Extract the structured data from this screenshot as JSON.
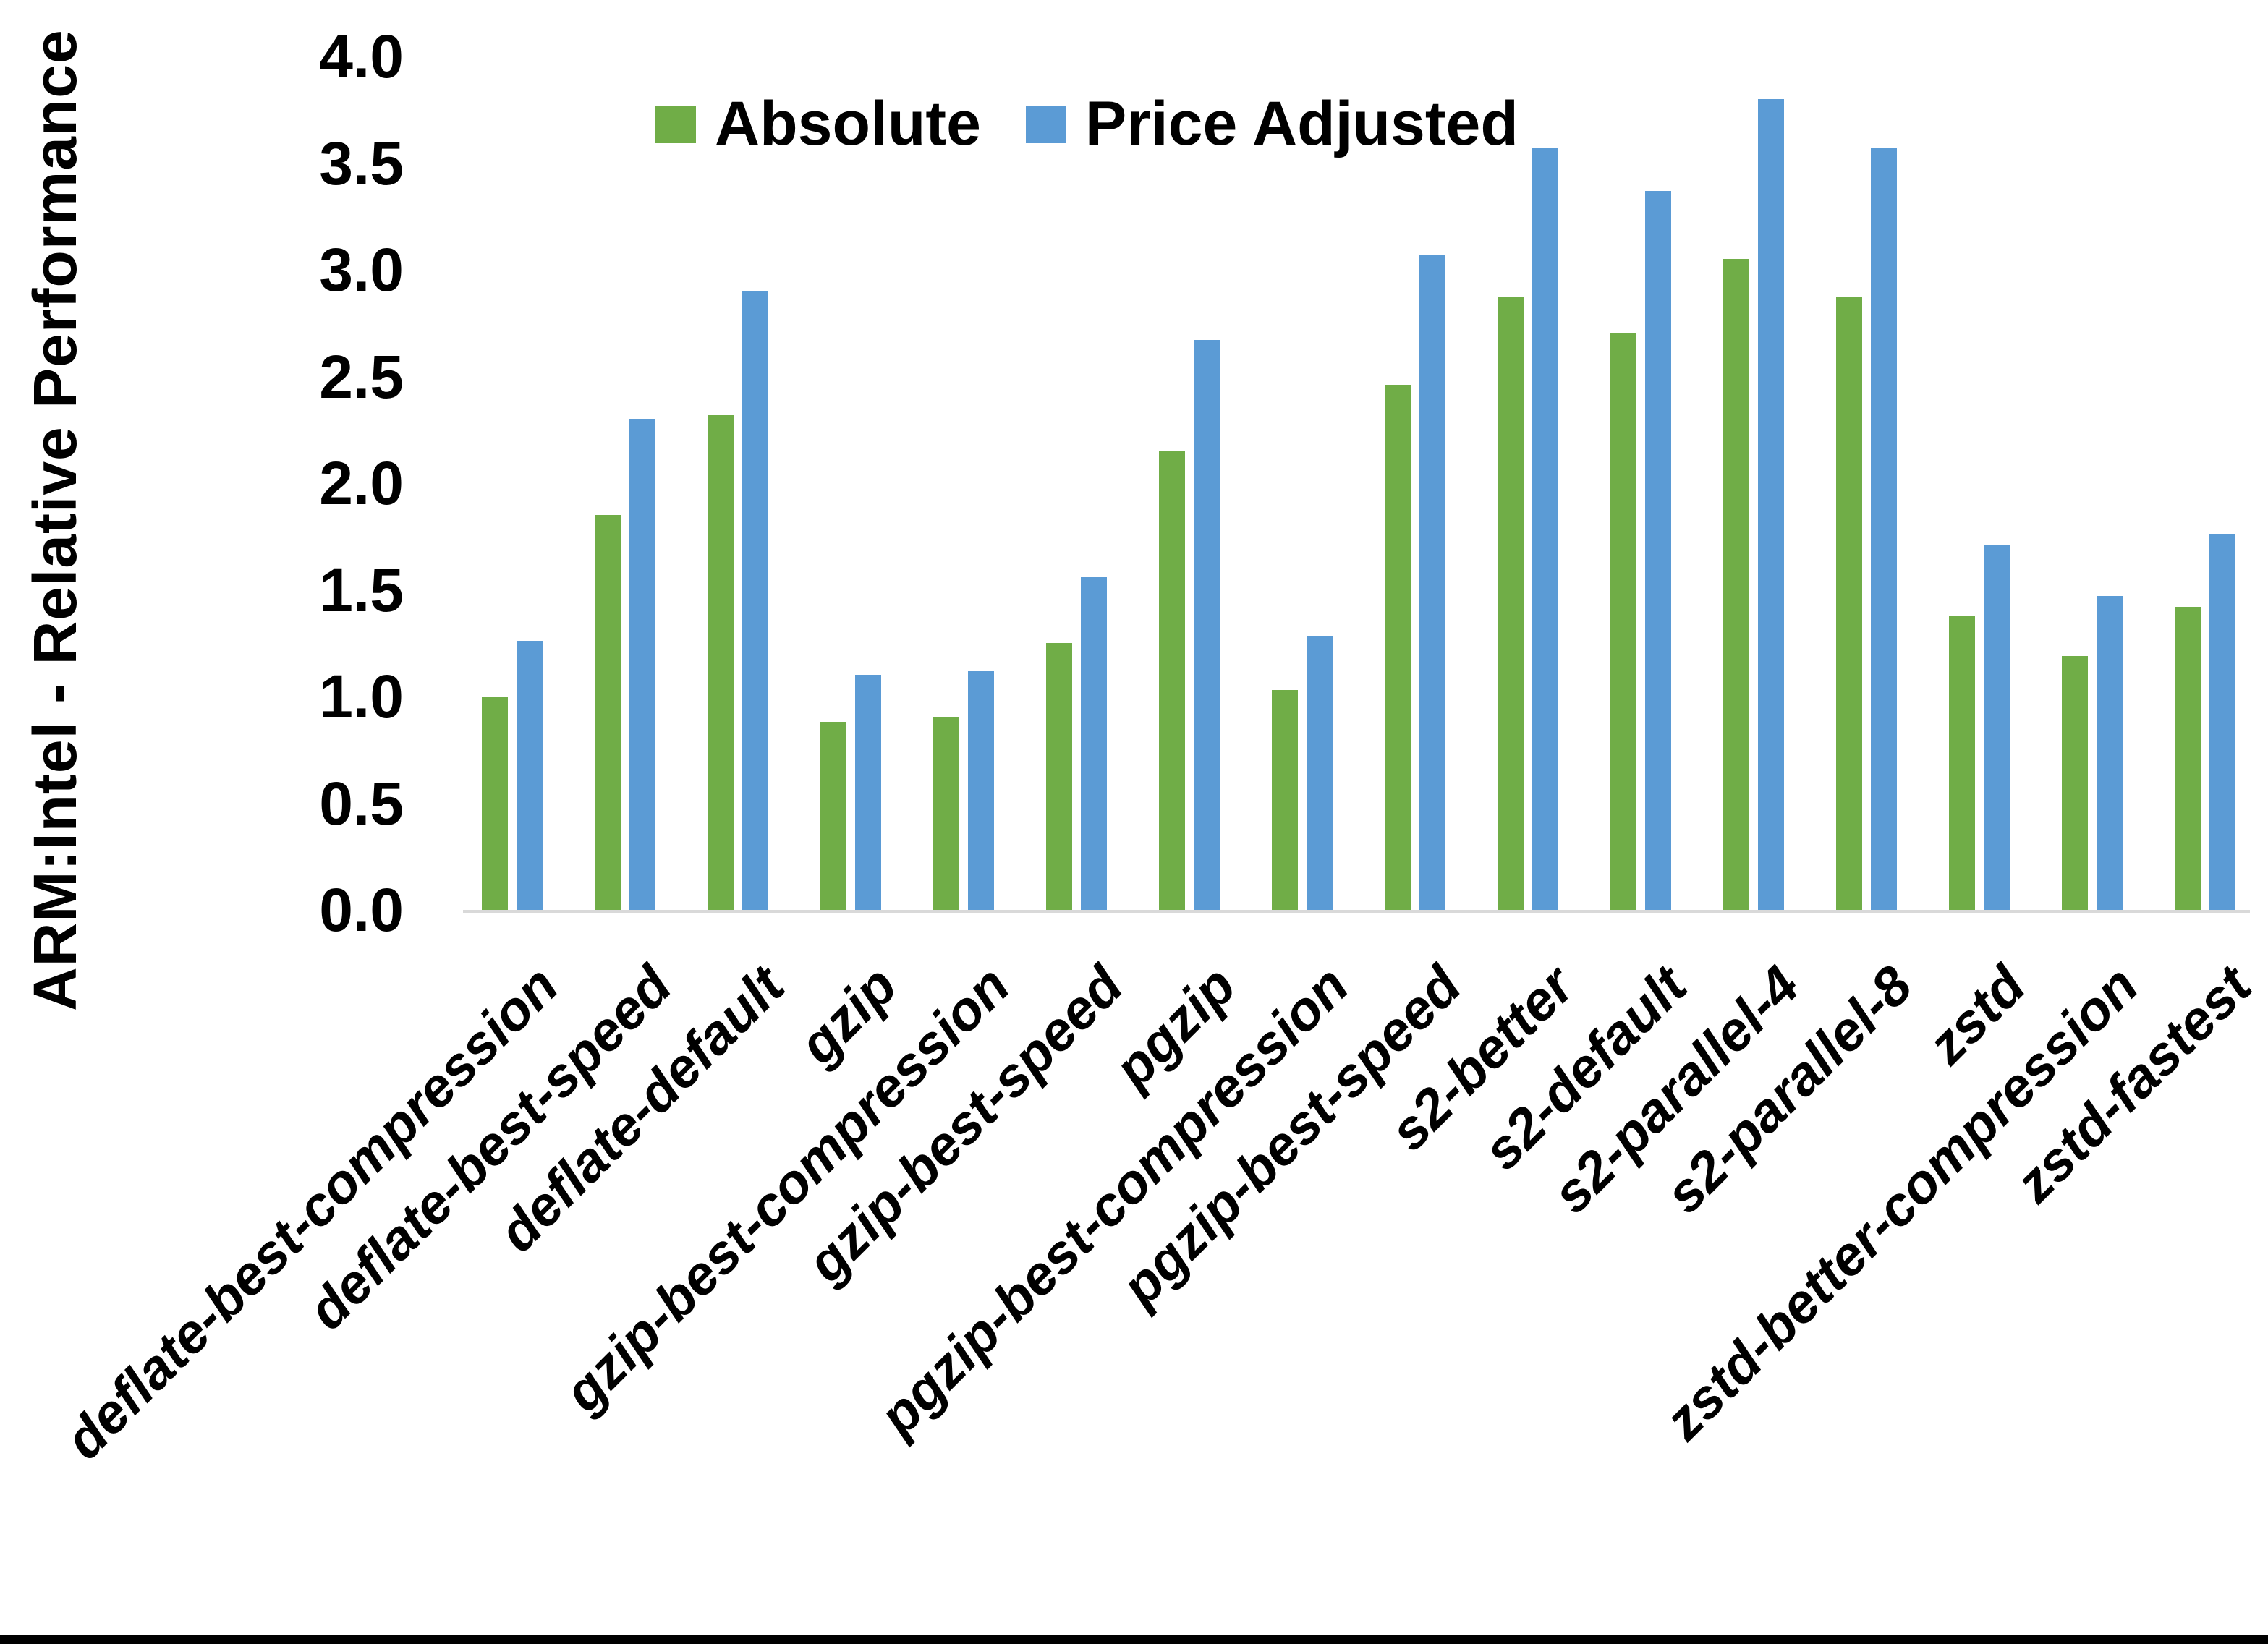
{
  "chart_data": {
    "type": "bar",
    "title": "",
    "xlabel": "",
    "ylabel": "ARM:Intel - Relative Performance",
    "ylim": [
      0.0,
      4.0
    ],
    "ytick_step": 0.5,
    "yticks": [
      "4.0",
      "3.5",
      "3.0",
      "2.5",
      "2.0",
      "1.5",
      "1.0",
      "0.5",
      "0.0"
    ],
    "grid": false,
    "legend_position": "top-center",
    "categories": [
      "deflate-best-compression",
      "deflate-best-speed",
      "deflate-default",
      "gzip",
      "gzip-best-compression",
      "gzip-best-speed",
      "pgzip",
      "pgzip-best-compression",
      "pgzip-best-speed",
      "s2-better",
      "s2-default",
      "s2-parallel-4",
      "s2-parallel-8",
      "zstd",
      "zstd-better-compression",
      "zstd-fastest"
    ],
    "series": [
      {
        "name": "Absolute",
        "color": "#70AD47",
        "values": [
          1.0,
          1.85,
          2.32,
          0.88,
          0.9,
          1.25,
          2.15,
          1.03,
          2.46,
          2.87,
          2.7,
          3.05,
          2.87,
          1.38,
          1.19,
          1.42
        ]
      },
      {
        "name": "Price Adjusted",
        "color": "#5B9BD5",
        "values": [
          1.26,
          2.3,
          2.9,
          1.1,
          1.12,
          1.56,
          2.67,
          1.28,
          3.07,
          3.57,
          3.37,
          3.8,
          3.57,
          1.71,
          1.47,
          1.76
        ]
      }
    ]
  },
  "colors": {
    "background": "#FFFFFF",
    "axis_line": "#D9D9D9",
    "text": "#000000",
    "bottom_border": "#000000"
  }
}
